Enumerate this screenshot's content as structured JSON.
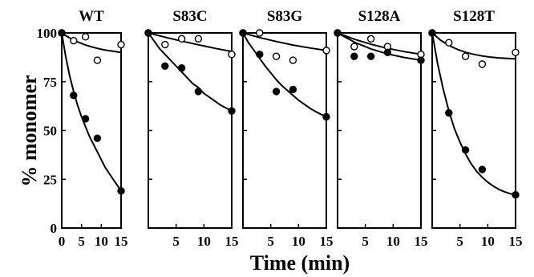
{
  "figure": {
    "ylabel": "% monomer",
    "xlabel": "Time (min)"
  },
  "chart_data": [
    {
      "type": "scatter",
      "title": "WT",
      "xlim": [
        0,
        15
      ],
      "ylim": [
        0,
        100
      ],
      "xticks": [
        0,
        5,
        10,
        15
      ],
      "yticks": [
        0,
        25,
        50,
        75,
        100
      ],
      "series": [
        {
          "marker": "open",
          "x": [
            0,
            3,
            6,
            9,
            15
          ],
          "y": [
            100,
            96,
            98,
            86,
            94
          ],
          "fit": {
            "x": [
              0,
              1,
              2,
              3,
              4,
              5,
              6,
              7,
              8,
              9,
              10,
              11,
              12,
              13,
              14,
              15
            ],
            "y": [
              100,
              98.6,
              97.4,
              96.3,
              95.4,
              94.6,
              93.8,
              93.2,
              92.6,
              92.1,
              91.6,
              91.2,
              90.9,
              90.6,
              90.3,
              90.0
            ]
          }
        },
        {
          "marker": "filled",
          "x": [
            0,
            3,
            6,
            9,
            15
          ],
          "y": [
            100,
            68,
            56,
            46,
            19
          ],
          "fit": {
            "x": [
              0,
              1,
              2,
              3,
              4,
              5,
              6,
              7,
              8,
              9,
              10,
              11,
              12,
              13,
              14,
              15
            ],
            "y": [
              100,
              88,
              78,
              70,
              63,
              57,
              52,
              47,
              43,
              39,
              35,
              31,
              28,
              25,
              22,
              19
            ]
          }
        }
      ]
    },
    {
      "type": "scatter",
      "title": "S83C",
      "xlim": [
        0,
        15
      ],
      "ylim": [
        0,
        100
      ],
      "xticks": [
        5,
        10,
        15
      ],
      "yticks": [
        0,
        25,
        50,
        75,
        100
      ],
      "series": [
        {
          "marker": "open",
          "x": [
            0,
            3,
            6,
            9,
            15
          ],
          "y": [
            100,
            94,
            97,
            97,
            89
          ],
          "fit": {
            "x": [
              0,
              3,
              6,
              9,
              12,
              15
            ],
            "y": [
              100,
              97.8,
              95.8,
              93.9,
              92.1,
              90.5
            ]
          }
        },
        {
          "marker": "filled",
          "x": [
            0,
            3,
            6,
            9,
            15
          ],
          "y": [
            100,
            83,
            82,
            70,
            60
          ],
          "fit": {
            "x": [
              0,
              1,
              2,
              3,
              4,
              5,
              6,
              7,
              8,
              9,
              10,
              11,
              12,
              13,
              14,
              15
            ],
            "y": [
              100,
              96,
              92,
              89,
              86,
              83,
              80,
              77,
              74,
              72,
              69,
              67,
              65,
              63,
              61.5,
              60
            ]
          }
        }
      ]
    },
    {
      "type": "scatter",
      "title": "S83G",
      "xlim": [
        0,
        15
      ],
      "ylim": [
        0,
        100
      ],
      "xticks": [
        5,
        10,
        15
      ],
      "yticks": [
        0,
        25,
        50,
        75,
        100
      ],
      "series": [
        {
          "marker": "open",
          "x": [
            0,
            3,
            6,
            9,
            15
          ],
          "y": [
            100,
            100,
            88,
            86,
            91
          ],
          "fit": {
            "x": [
              0,
              3,
              6,
              9,
              12,
              15
            ],
            "y": [
              100,
              97.6,
              95.6,
              93.8,
              92.3,
              91.0
            ]
          }
        },
        {
          "marker": "filled",
          "x": [
            0,
            3,
            6,
            9,
            15
          ],
          "y": [
            100,
            89,
            70,
            71,
            57
          ],
          "fit": {
            "x": [
              0,
              1,
              2,
              3,
              4,
              5,
              6,
              7,
              8,
              9,
              10,
              11,
              12,
              13,
              14,
              15
            ],
            "y": [
              100,
              95,
              91,
              87,
              83,
              79.5,
              76,
              73,
              70.5,
              68,
              65.5,
              63.5,
              61.5,
              59.8,
              58.3,
              57
            ]
          }
        }
      ]
    },
    {
      "type": "scatter",
      "title": "S128A",
      "xlim": [
        0,
        15
      ],
      "ylim": [
        0,
        100
      ],
      "xticks": [
        5,
        10,
        15
      ],
      "yticks": [
        0,
        25,
        50,
        75,
        100
      ],
      "series": [
        {
          "marker": "open",
          "x": [
            0,
            3,
            6,
            9,
            15
          ],
          "y": [
            100,
            93,
            97,
            93,
            89
          ],
          "fit": {
            "x": [
              0,
              3,
              6,
              9,
              12,
              15
            ],
            "y": [
              100,
              96.8,
              94.2,
              92.1,
              90.4,
              89.0
            ]
          }
        },
        {
          "marker": "filled",
          "x": [
            0,
            3,
            6,
            9,
            15
          ],
          "y": [
            100,
            88,
            88,
            90,
            86
          ],
          "fit": {
            "x": [
              0,
              3,
              6,
              9,
              12,
              15
            ],
            "y": [
              100,
              95.3,
              91.8,
              89.2,
              87.4,
              86.0
            ]
          }
        }
      ]
    },
    {
      "type": "scatter",
      "title": "S128T",
      "xlim": [
        0,
        15
      ],
      "ylim": [
        0,
        100
      ],
      "xticks": [
        5,
        10,
        15
      ],
      "yticks": [
        0,
        25,
        50,
        75,
        100
      ],
      "series": [
        {
          "marker": "open",
          "x": [
            0,
            3,
            6,
            9,
            15
          ],
          "y": [
            100,
            95,
            88,
            84,
            90
          ],
          "fit": {
            "x": [
              0,
              1.5,
              3,
              4.5,
              6,
              7.5,
              9,
              10.5,
              12,
              13.5,
              15
            ],
            "y": [
              100,
              96.3,
              93.6,
              91.6,
              90.1,
              89.0,
              88.2,
              87.6,
              87.2,
              86.9,
              86.7
            ]
          }
        },
        {
          "marker": "filled",
          "x": [
            0,
            3,
            6,
            9,
            15
          ],
          "y": [
            100,
            59,
            40,
            30,
            17
          ],
          "fit": {
            "x": [
              0,
              1,
              2,
              3,
              4,
              5,
              6,
              7,
              8,
              9,
              10,
              11,
              12,
              13,
              14,
              15
            ],
            "y": [
              100,
              84,
              71,
              60,
              51,
              44,
              38,
              33,
              29,
              26,
              23.5,
              21.5,
              19.8,
              18.6,
              17.6,
              17
            ]
          }
        }
      ]
    }
  ]
}
